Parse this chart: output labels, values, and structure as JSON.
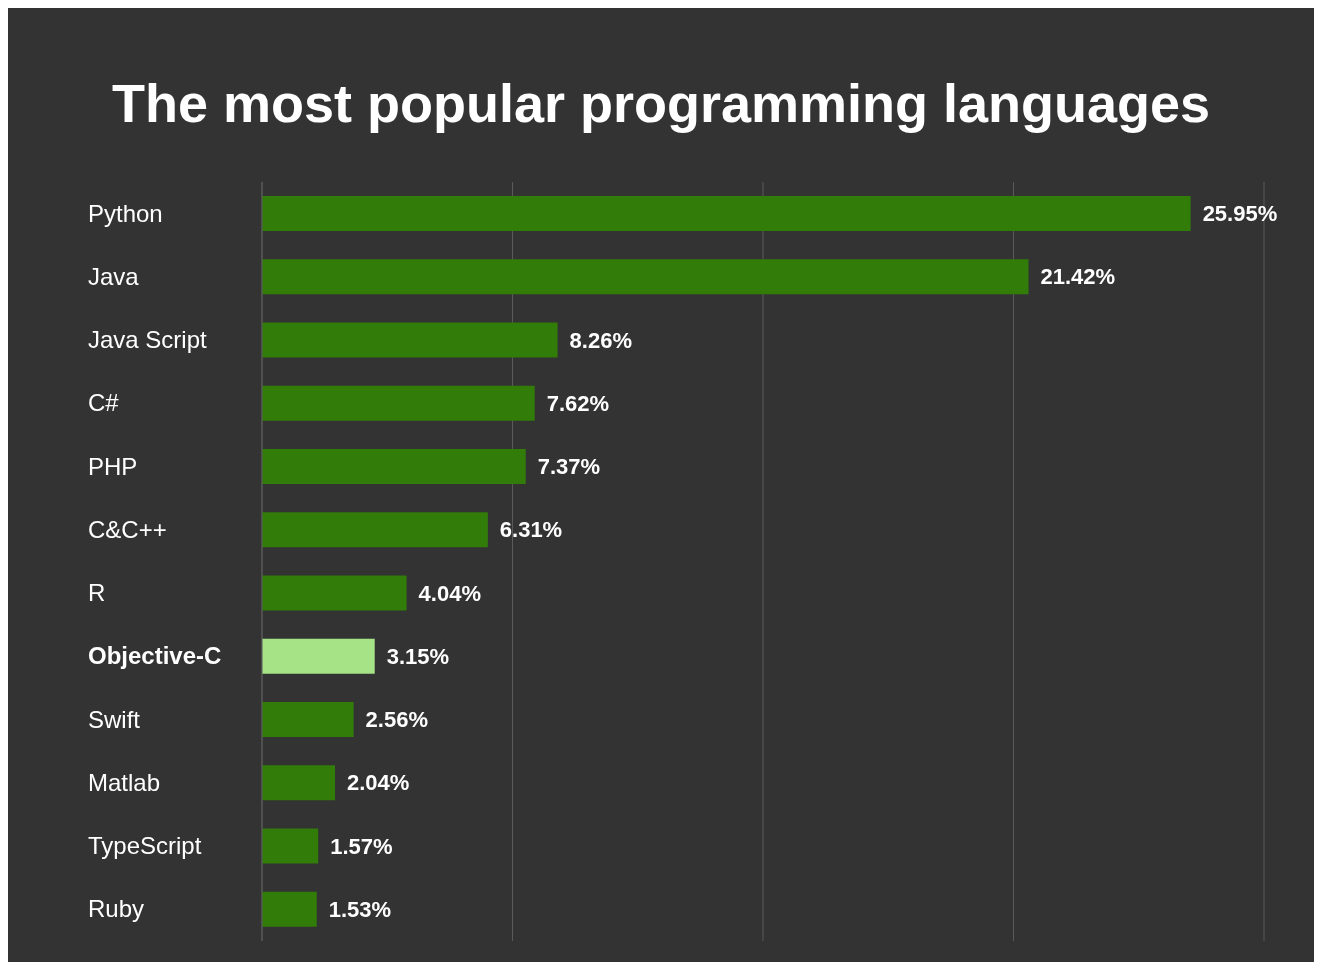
{
  "chart_data": {
    "type": "bar",
    "orientation": "horizontal",
    "title": "The most popular programming languages",
    "categories": [
      "Python",
      "Java",
      "Java Script",
      "C#",
      "PHP",
      "C&C++",
      "R",
      "Objective-C",
      "Swift",
      "Matlab",
      "TypeScript",
      "Ruby"
    ],
    "values": [
      25.95,
      21.42,
      8.26,
      7.62,
      7.37,
      6.31,
      4.04,
      3.15,
      2.56,
      2.04,
      1.57,
      1.53
    ],
    "value_labels": [
      "25.95%",
      "21.42%",
      "8.26%",
      "7.62%",
      "7.37%",
      "6.31%",
      "4.04%",
      "3.15%",
      "2.56%",
      "2.04%",
      "1.57%",
      "1.53%"
    ],
    "colors": [
      "#327d0a",
      "#327d0a",
      "#327d0a",
      "#327d0a",
      "#327d0a",
      "#327d0a",
      "#327d0a",
      "#a6e387",
      "#327d0a",
      "#327d0a",
      "#327d0a",
      "#327d0a"
    ],
    "grid": "x",
    "tick_labels": "y",
    "legend": false
  }
}
